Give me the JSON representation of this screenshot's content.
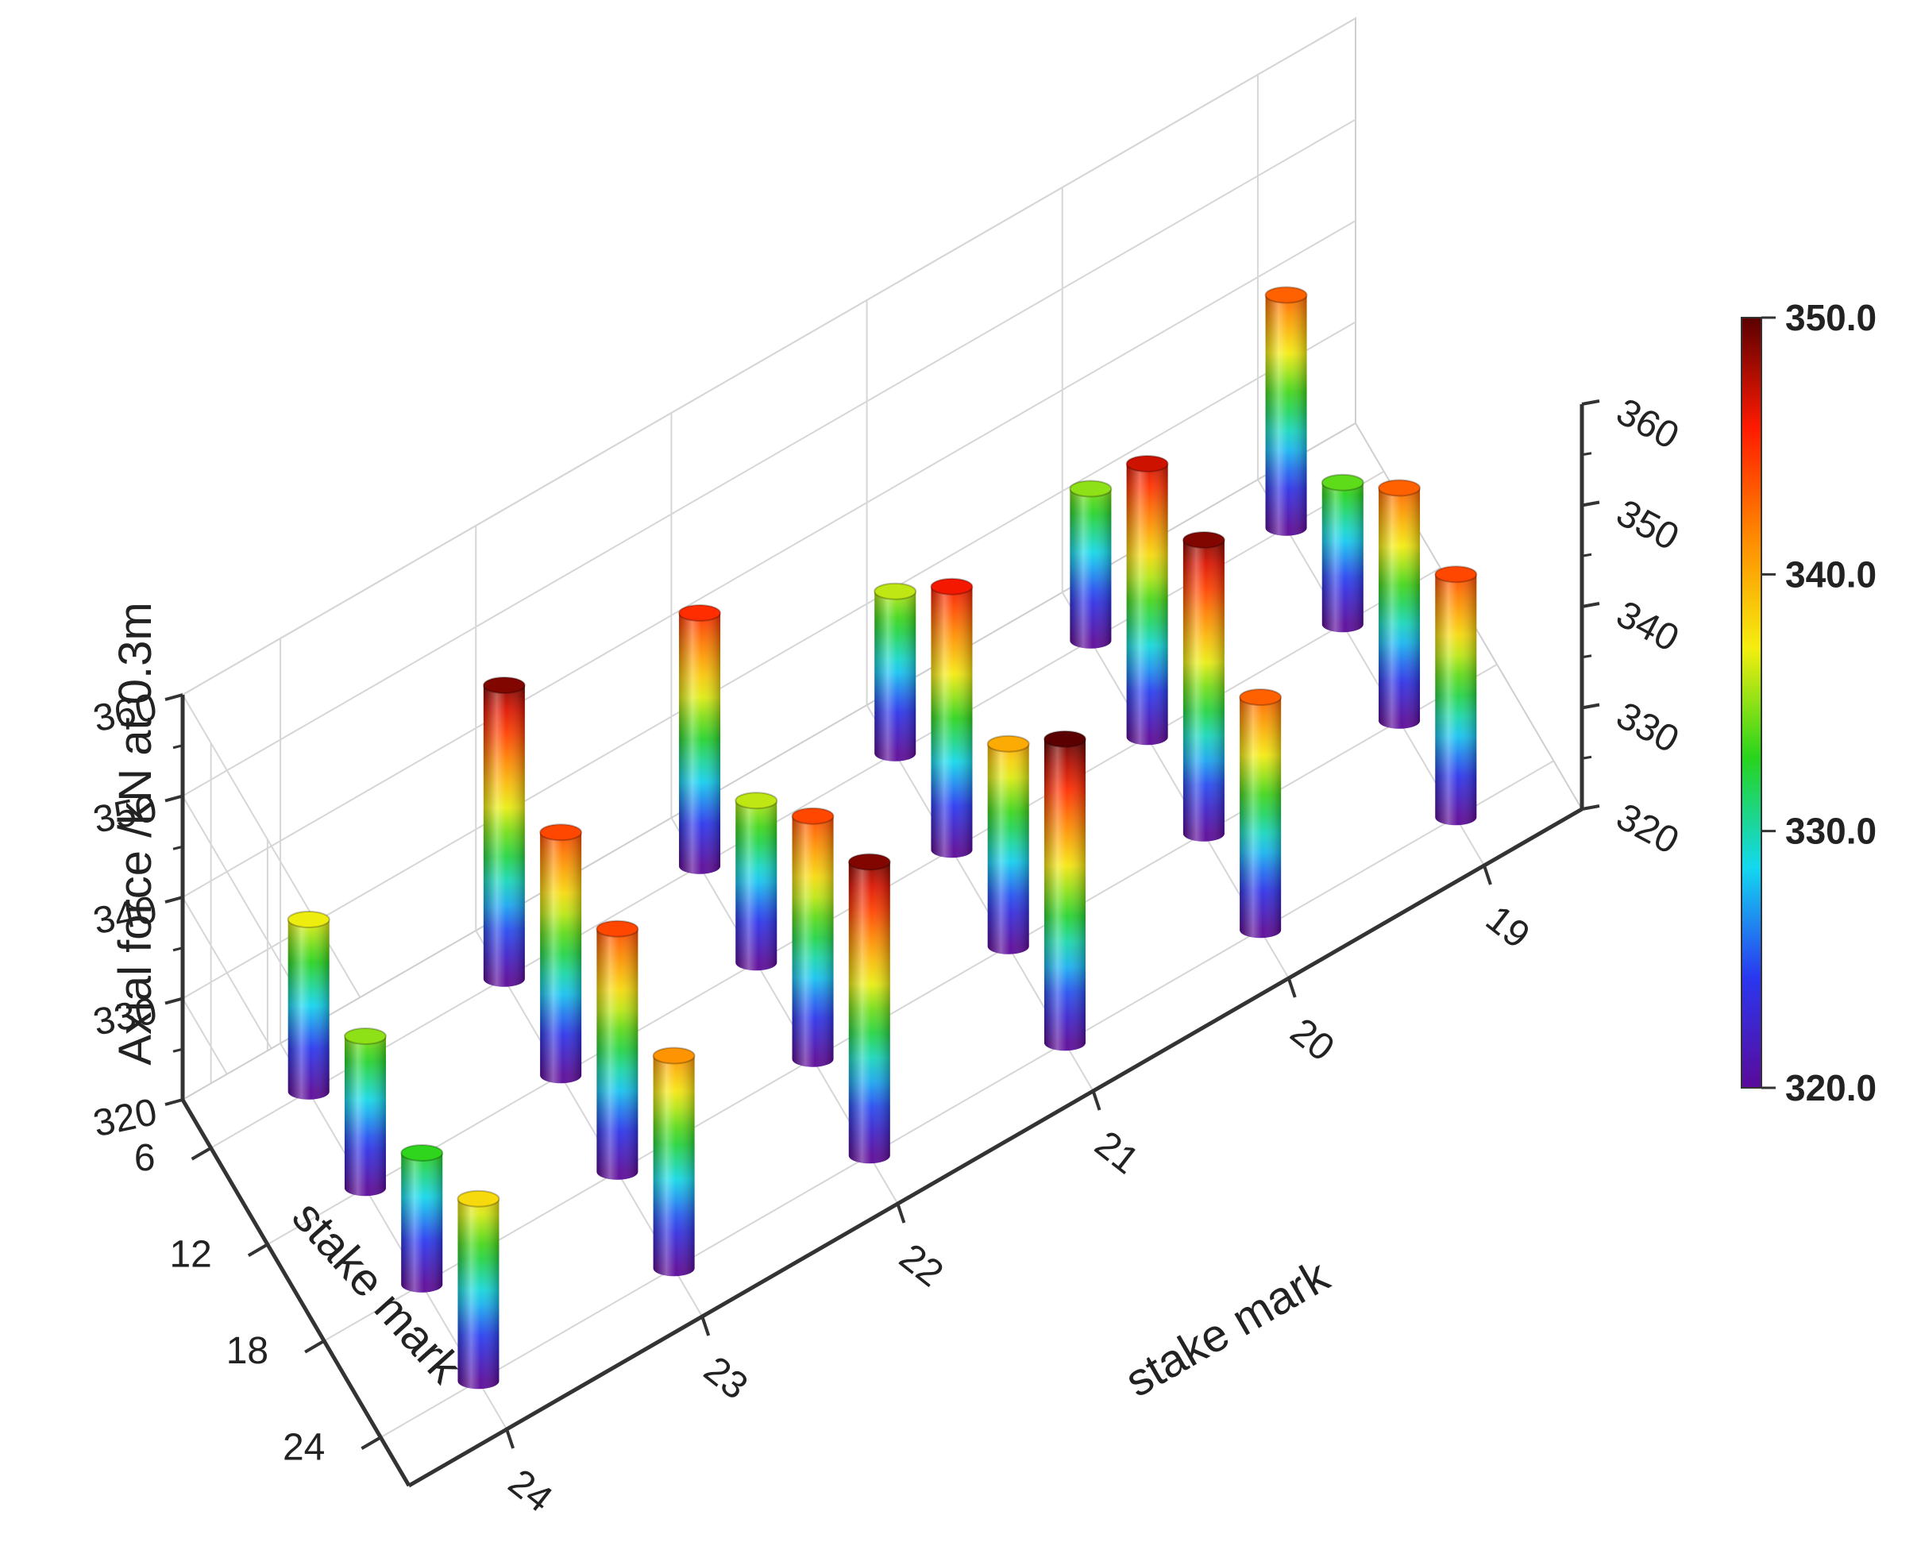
{
  "chart_data": {
    "type": "bar3d",
    "z_label": "Axial force /kN at 0.3m",
    "x_label": "stake mark",
    "y_label": "stake mark",
    "x_ticks": [
      "19",
      "20",
      "21",
      "22",
      "23",
      "24"
    ],
    "y_ticks": [
      "6",
      "12",
      "18",
      "24"
    ],
    "z_ticks": [
      "320",
      "330",
      "340",
      "350",
      "360"
    ],
    "zlim": [
      320,
      360
    ],
    "colorbar": {
      "ticks": [
        "320.0",
        "330.0",
        "340.0",
        "350.0"
      ],
      "range": [
        320,
        350
      ],
      "colors": [
        "#5a0a9a",
        "#2a37f0",
        "#13d8f0",
        "#27d41c",
        "#f5ee10",
        "#ff8a00",
        "#ff1a00",
        "#5a0000"
      ]
    },
    "x_categories": [
      "19",
      "20",
      "21",
      "22",
      "23",
      "24"
    ],
    "y_categories": [
      "6",
      "12",
      "18",
      "24"
    ],
    "values": [
      [
        343,
        334,
        343,
        344
      ],
      [
        335,
        347,
        349,
        343
      ],
      [
        336,
        346,
        340,
        350
      ],
      [
        345,
        336,
        344,
        349
      ],
      [
        349,
        344,
        344,
        341
      ],
      [
        337,
        335,
        333,
        338
      ]
    ]
  }
}
